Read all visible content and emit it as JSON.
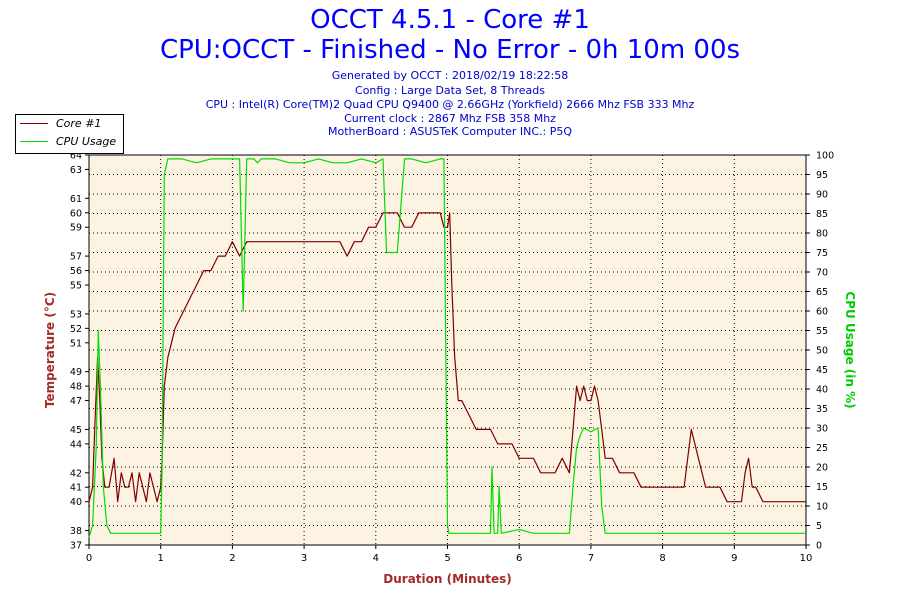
{
  "header": {
    "title": "OCCT 4.5.1 - Core #1",
    "subtitle": "CPU:OCCT - Finished - No Error - 0h 10m 00s",
    "info_lines": [
      "Generated by OCCT : 2018/02/19 18:22:58",
      "Config : Large Data Set, 8 Threads",
      "CPU : Intel(R) Core(TM)2 Quad CPU Q9400 @ 2.66GHz (Yorkfield) 2666 Mhz FSB 333 Mhz",
      "Current clock : 2867 Mhz FSB 358 Mhz",
      "MotherBoard : ASUSTeK Computer INC.: P5Q"
    ]
  },
  "legend": [
    {
      "name": "Core #1",
      "color": "#800000"
    },
    {
      "name": "CPU Usage",
      "color": "#00dd00"
    }
  ],
  "chart_data": {
    "type": "line",
    "xlabel": "Duration (Minutes)",
    "ylabel_left": "Temperature (°C)",
    "ylabel_right": "CPU Usage (in %)",
    "xlim": [
      0,
      10
    ],
    "ylim_left": [
      37,
      64
    ],
    "ylim_right": [
      0,
      100
    ],
    "x_ticks": [
      0,
      1,
      2,
      3,
      4,
      5,
      6,
      7,
      8,
      9,
      10
    ],
    "left_ticks": [
      37,
      38,
      40,
      41,
      42,
      44,
      45,
      47,
      48,
      49,
      51,
      52,
      53,
      55,
      56,
      57,
      59,
      60,
      61,
      63,
      64
    ],
    "right_ticks": [
      0,
      5,
      10,
      15,
      20,
      25,
      30,
      35,
      40,
      45,
      50,
      55,
      60,
      65,
      70,
      75,
      80,
      85,
      90,
      95,
      100
    ],
    "grid": true,
    "legend_position": "top-left",
    "colors": {
      "temperature": "#800000",
      "cpu": "#00dd00",
      "plot_bg": "#fdf3e3",
      "axis_label": "#a52a2a",
      "right_label": "#00cc00"
    },
    "series": [
      {
        "name": "Core #1",
        "axis": "left",
        "x": [
          0,
          0.05,
          0.08,
          0.12,
          0.15,
          0.18,
          0.22,
          0.28,
          0.35,
          0.4,
          0.45,
          0.5,
          0.55,
          0.6,
          0.65,
          0.7,
          0.75,
          0.8,
          0.85,
          0.9,
          0.95,
          1.0,
          1.02,
          1.05,
          1.1,
          1.15,
          1.2,
          1.3,
          1.4,
          1.5,
          1.6,
          1.7,
          1.8,
          1.9,
          2.0,
          2.1,
          2.2,
          2.3,
          2.4,
          2.5,
          2.6,
          2.7,
          2.8,
          2.9,
          3.0,
          3.1,
          3.2,
          3.3,
          3.4,
          3.5,
          3.6,
          3.7,
          3.8,
          3.9,
          4.0,
          4.1,
          4.2,
          4.3,
          4.4,
          4.5,
          4.6,
          4.7,
          4.8,
          4.9,
          4.95,
          5.0,
          5.03,
          5.06,
          5.1,
          5.15,
          5.2,
          5.3,
          5.4,
          5.5,
          5.6,
          5.7,
          5.8,
          5.9,
          6.0,
          6.1,
          6.2,
          6.3,
          6.4,
          6.5,
          6.6,
          6.7,
          6.8,
          6.85,
          6.9,
          6.95,
          7.0,
          7.05,
          7.1,
          7.15,
          7.2,
          7.3,
          7.4,
          7.5,
          7.6,
          7.7,
          7.8,
          7.9,
          8.0,
          8.1,
          8.2,
          8.3,
          8.4,
          8.5,
          8.6,
          8.7,
          8.8,
          8.9,
          9.0,
          9.1,
          9.15,
          9.2,
          9.25,
          9.3,
          9.4,
          9.5,
          9.6,
          9.7,
          9.8,
          9.9,
          10.0
        ],
        "values": [
          40,
          41,
          45,
          50,
          47,
          43,
          41,
          41,
          43,
          40,
          42,
          41,
          41,
          42,
          40,
          42,
          41,
          40,
          42,
          41,
          40,
          41,
          43,
          48,
          50,
          51,
          52,
          53,
          54,
          55,
          56,
          56,
          57,
          57,
          58,
          57,
          58,
          58,
          58,
          58,
          58,
          58,
          58,
          58,
          58,
          58,
          58,
          58,
          58,
          58,
          57,
          58,
          58,
          59,
          59,
          60,
          60,
          60,
          59,
          59,
          60,
          60,
          60,
          60,
          59,
          59,
          60,
          55,
          50,
          47,
          47,
          46,
          45,
          45,
          45,
          44,
          44,
          44,
          43,
          43,
          43,
          42,
          42,
          42,
          43,
          42,
          48,
          47,
          48,
          47,
          47,
          48,
          47,
          45,
          43,
          43,
          42,
          42,
          42,
          41,
          41,
          41,
          41,
          41,
          41,
          41,
          45,
          43,
          41,
          41,
          41,
          40,
          40,
          40,
          42,
          43,
          41,
          41,
          40,
          40,
          40,
          40,
          40,
          40,
          40
        ]
      },
      {
        "name": "CPU Usage",
        "axis": "right",
        "x": [
          0,
          0.05,
          0.1,
          0.13,
          0.16,
          0.2,
          0.25,
          0.3,
          0.5,
          0.8,
          0.95,
          1.0,
          1.02,
          1.05,
          1.1,
          1.3,
          1.5,
          1.7,
          1.9,
          2.1,
          2.15,
          2.2,
          2.3,
          2.35,
          2.4,
          2.6,
          2.8,
          3.0,
          3.2,
          3.4,
          3.6,
          3.8,
          4.0,
          4.1,
          4.15,
          4.2,
          4.3,
          4.4,
          4.45,
          4.5,
          4.7,
          4.9,
          4.95,
          5.0,
          5.02,
          5.05,
          5.1,
          5.3,
          5.5,
          5.6,
          5.62,
          5.65,
          5.7,
          5.72,
          5.75,
          6.0,
          6.2,
          6.5,
          6.7,
          6.75,
          6.8,
          6.85,
          6.9,
          7.0,
          7.1,
          7.15,
          7.2,
          7.3,
          7.5,
          8.0,
          8.5,
          9.0,
          9.5,
          10.0
        ],
        "values": [
          2,
          5,
          25,
          55,
          40,
          15,
          5,
          3,
          3,
          3,
          3,
          3,
          20,
          95,
          99,
          99,
          98,
          99,
          99,
          99,
          60,
          99,
          99,
          98,
          99,
          99,
          98,
          98,
          99,
          98,
          98,
          99,
          98,
          99,
          75,
          75,
          75,
          99,
          99,
          99,
          98,
          99,
          99,
          5,
          3,
          3,
          3,
          3,
          3,
          3,
          20,
          3,
          3,
          15,
          3,
          4,
          3,
          3,
          3,
          15,
          25,
          28,
          30,
          29,
          30,
          10,
          3,
          3,
          3,
          3,
          3,
          3,
          3,
          3
        ]
      }
    ]
  }
}
